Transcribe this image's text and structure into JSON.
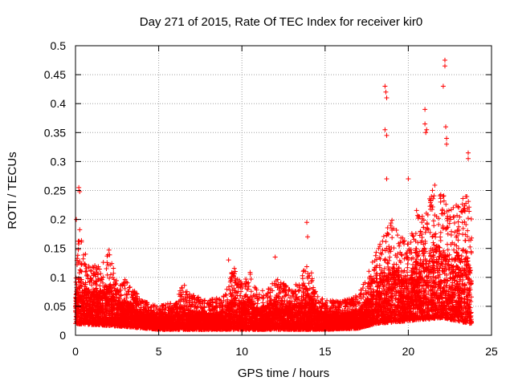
{
  "chart_data": {
    "type": "scatter",
    "title": "Day 271 of 2015, Rate Of TEC Index for receiver kir0",
    "xlabel": "GPS time / hours",
    "ylabel": "ROTI / TECUs",
    "xlim": [
      0,
      25
    ],
    "ylim": [
      0,
      0.5
    ],
    "x_ticks": [
      0,
      5,
      10,
      15,
      20,
      25
    ],
    "x_tick_labels": [
      "0",
      "5",
      "10",
      "15",
      "20",
      "25"
    ],
    "y_ticks": [
      0,
      0.05,
      0.1,
      0.15,
      0.2,
      0.25,
      0.3,
      0.35,
      0.4,
      0.45,
      0.5
    ],
    "y_tick_labels": [
      "0",
      "0.05",
      "0.1",
      "0.15",
      "0.2",
      "0.25",
      "0.3",
      "0.35",
      "0.4",
      "0.45",
      "0.5"
    ],
    "grid": true,
    "marker": "+",
    "color": "#ff0000",
    "envelope": {
      "description": "approximate upper envelope of the ROTI values vs time (hours)",
      "x": [
        0,
        0.2,
        0.5,
        1,
        1.5,
        2,
        2.5,
        3,
        3.5,
        4,
        5,
        6,
        6.5,
        7,
        8,
        9,
        9.5,
        10,
        10.5,
        11,
        12,
        13,
        13.5,
        14,
        14.5,
        15,
        16,
        17,
        17.5,
        18,
        18.5,
        19,
        19.5,
        20,
        20.5,
        21,
        21.5,
        22,
        22.5,
        23,
        23.5,
        23.8
      ],
      "y": [
        0.1,
        0.2,
        0.14,
        0.12,
        0.13,
        0.15,
        0.09,
        0.1,
        0.08,
        0.06,
        0.05,
        0.06,
        0.09,
        0.07,
        0.06,
        0.07,
        0.12,
        0.09,
        0.11,
        0.07,
        0.1,
        0.08,
        0.1,
        0.13,
        0.07,
        0.06,
        0.06,
        0.07,
        0.1,
        0.14,
        0.17,
        0.2,
        0.18,
        0.16,
        0.22,
        0.2,
        0.27,
        0.25,
        0.22,
        0.23,
        0.25,
        0.2
      ]
    },
    "baseline": {
      "description": "approximate lower envelope (floor) of the ROTI values",
      "x": [
        0,
        3,
        5,
        10,
        15,
        17,
        18,
        20,
        22,
        23.8
      ],
      "y": [
        0.02,
        0.015,
        0.01,
        0.01,
        0.01,
        0.012,
        0.02,
        0.025,
        0.03,
        0.02
      ]
    },
    "peak_points": [
      {
        "x": 0.05,
        "y": 0.2
      },
      {
        "x": 0.2,
        "y": 0.255
      },
      {
        "x": 0.25,
        "y": 0.248
      },
      {
        "x": 0.6,
        "y": 0.14
      },
      {
        "x": 9.2,
        "y": 0.13
      },
      {
        "x": 12,
        "y": 0.135
      },
      {
        "x": 13.9,
        "y": 0.195
      },
      {
        "x": 13.95,
        "y": 0.17
      },
      {
        "x": 18.6,
        "y": 0.43
      },
      {
        "x": 18.65,
        "y": 0.42
      },
      {
        "x": 18.7,
        "y": 0.41
      },
      {
        "x": 18.6,
        "y": 0.355
      },
      {
        "x": 18.7,
        "y": 0.345
      },
      {
        "x": 18.7,
        "y": 0.27
      },
      {
        "x": 20,
        "y": 0.27
      },
      {
        "x": 21,
        "y": 0.39
      },
      {
        "x": 21,
        "y": 0.365
      },
      {
        "x": 21.05,
        "y": 0.35
      },
      {
        "x": 21.1,
        "y": 0.355
      },
      {
        "x": 22.2,
        "y": 0.475
      },
      {
        "x": 22.2,
        "y": 0.465
      },
      {
        "x": 22.1,
        "y": 0.43
      },
      {
        "x": 22.25,
        "y": 0.36
      },
      {
        "x": 22.3,
        "y": 0.34
      },
      {
        "x": 22.3,
        "y": 0.33
      },
      {
        "x": 23.6,
        "y": 0.315
      },
      {
        "x": 23.6,
        "y": 0.305
      }
    ]
  }
}
